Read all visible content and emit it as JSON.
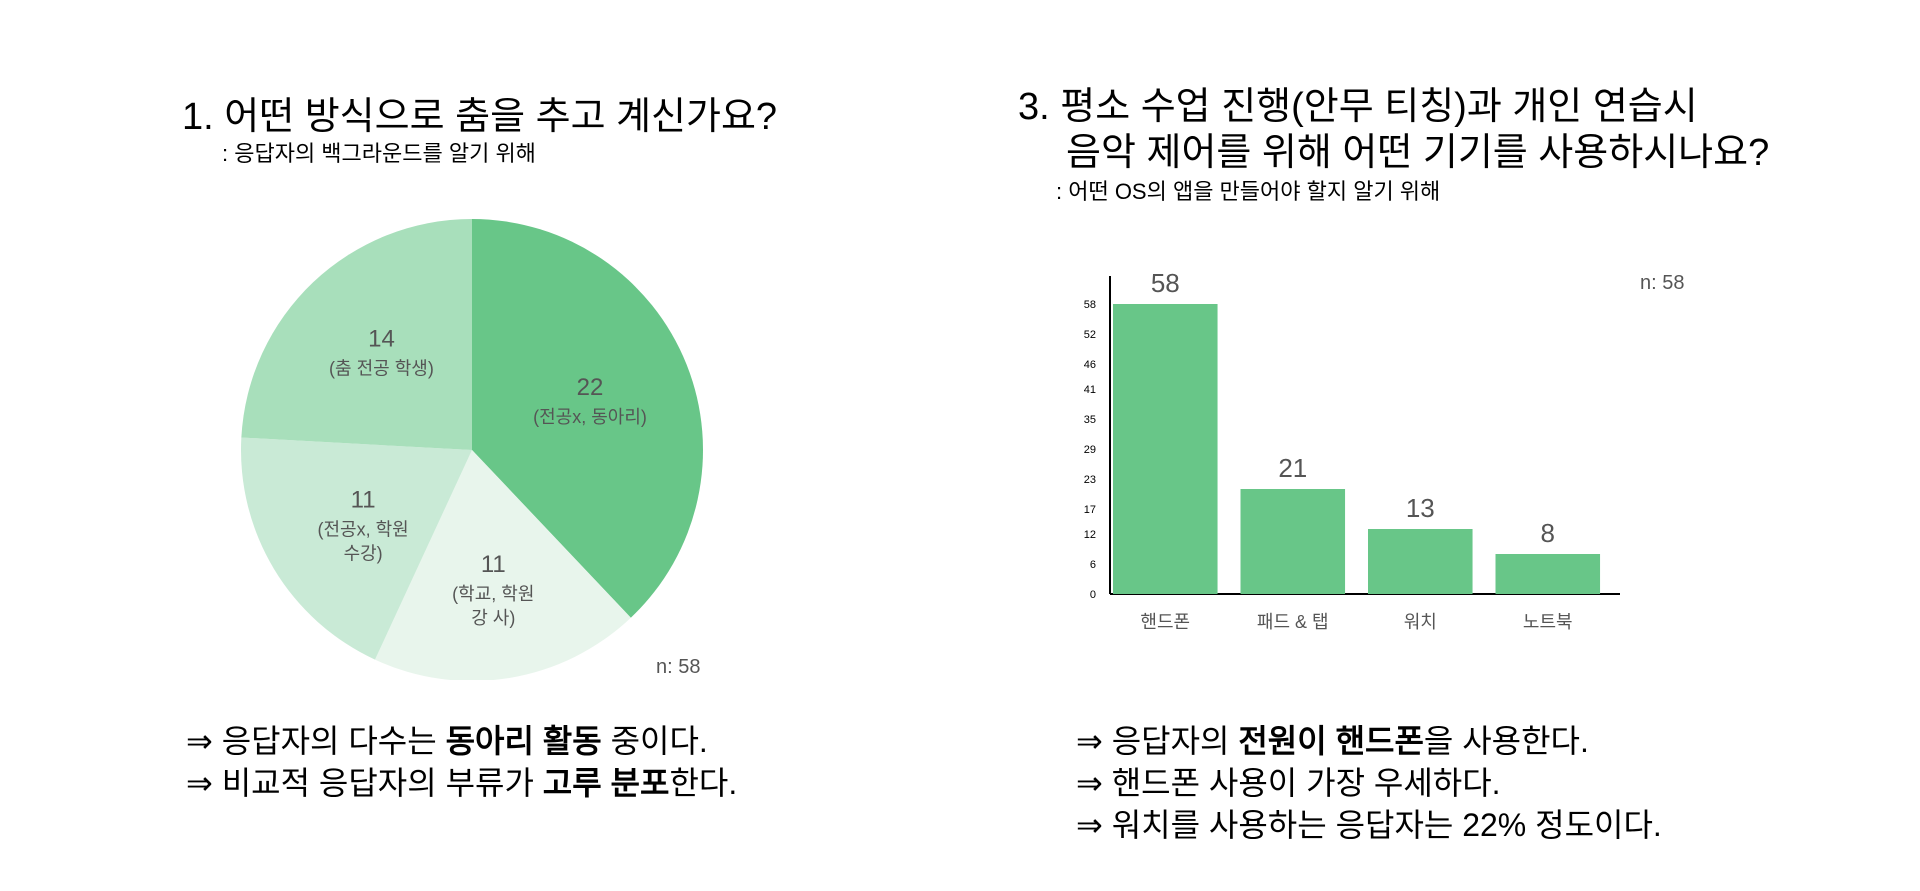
{
  "left": {
    "title": "1. 어떤 방식으로 춤을 추고 계신가요?",
    "subtitle": ": 응답자의 백그라운드를 알기 위해",
    "n_label": "n: 58",
    "conclusions": [
      {
        "pre": "⇒ 응답자의 다수는 ",
        "bold": "동아리 활동",
        "post": " 중이다."
      },
      {
        "pre": "⇒ 비교적 응답자의 부류가 ",
        "bold": "고루 분포",
        "post": "한다."
      }
    ]
  },
  "right": {
    "title_line1": "3. 평소 수업 진행(안무 티칭)과 개인 연습시",
    "title_line2": "음악 제어를 위해 어떤 기기를 사용하시나요?",
    "subtitle": ": 어떤 OS의 앱을 만들어야 할지 알기 위해",
    "n_label": "n: 58",
    "conclusions": [
      {
        "pre": "⇒ 응답자의 ",
        "bold": "전원이 핸드폰",
        "post": "을 사용한다."
      },
      {
        "pre": "⇒ 핸드폰 사용이 가장 우세하다.",
        "bold": "",
        "post": ""
      },
      {
        "pre": "⇒ 워치를 사용하는 응답자는 22% 정도이다.",
        "bold": "",
        "post": ""
      }
    ]
  },
  "chart_data": [
    {
      "type": "pie",
      "slices": [
        {
          "value": 22,
          "label": "(전공x, 동아리)",
          "color": "#68c688"
        },
        {
          "value": 11,
          "label": "(학교, 학원 강 사)",
          "color": "#e8f5ec"
        },
        {
          "value": 11,
          "label": "(전공x, 학원 수강)",
          "color": "#c9ead6"
        },
        {
          "value": 14,
          "label": "(춤 전공 학생)",
          "color": "#a8dfbb"
        }
      ]
    },
    {
      "type": "bar",
      "categories": [
        "핸드폰",
        "패드 & 탭",
        "워치",
        "노트북"
      ],
      "values": [
        58,
        21,
        13,
        8
      ],
      "yticks": [
        0,
        6,
        12,
        17,
        23,
        29,
        35,
        41,
        46,
        52,
        58
      ],
      "ylim": [
        0,
        58
      ],
      "color": "#68c688"
    }
  ]
}
